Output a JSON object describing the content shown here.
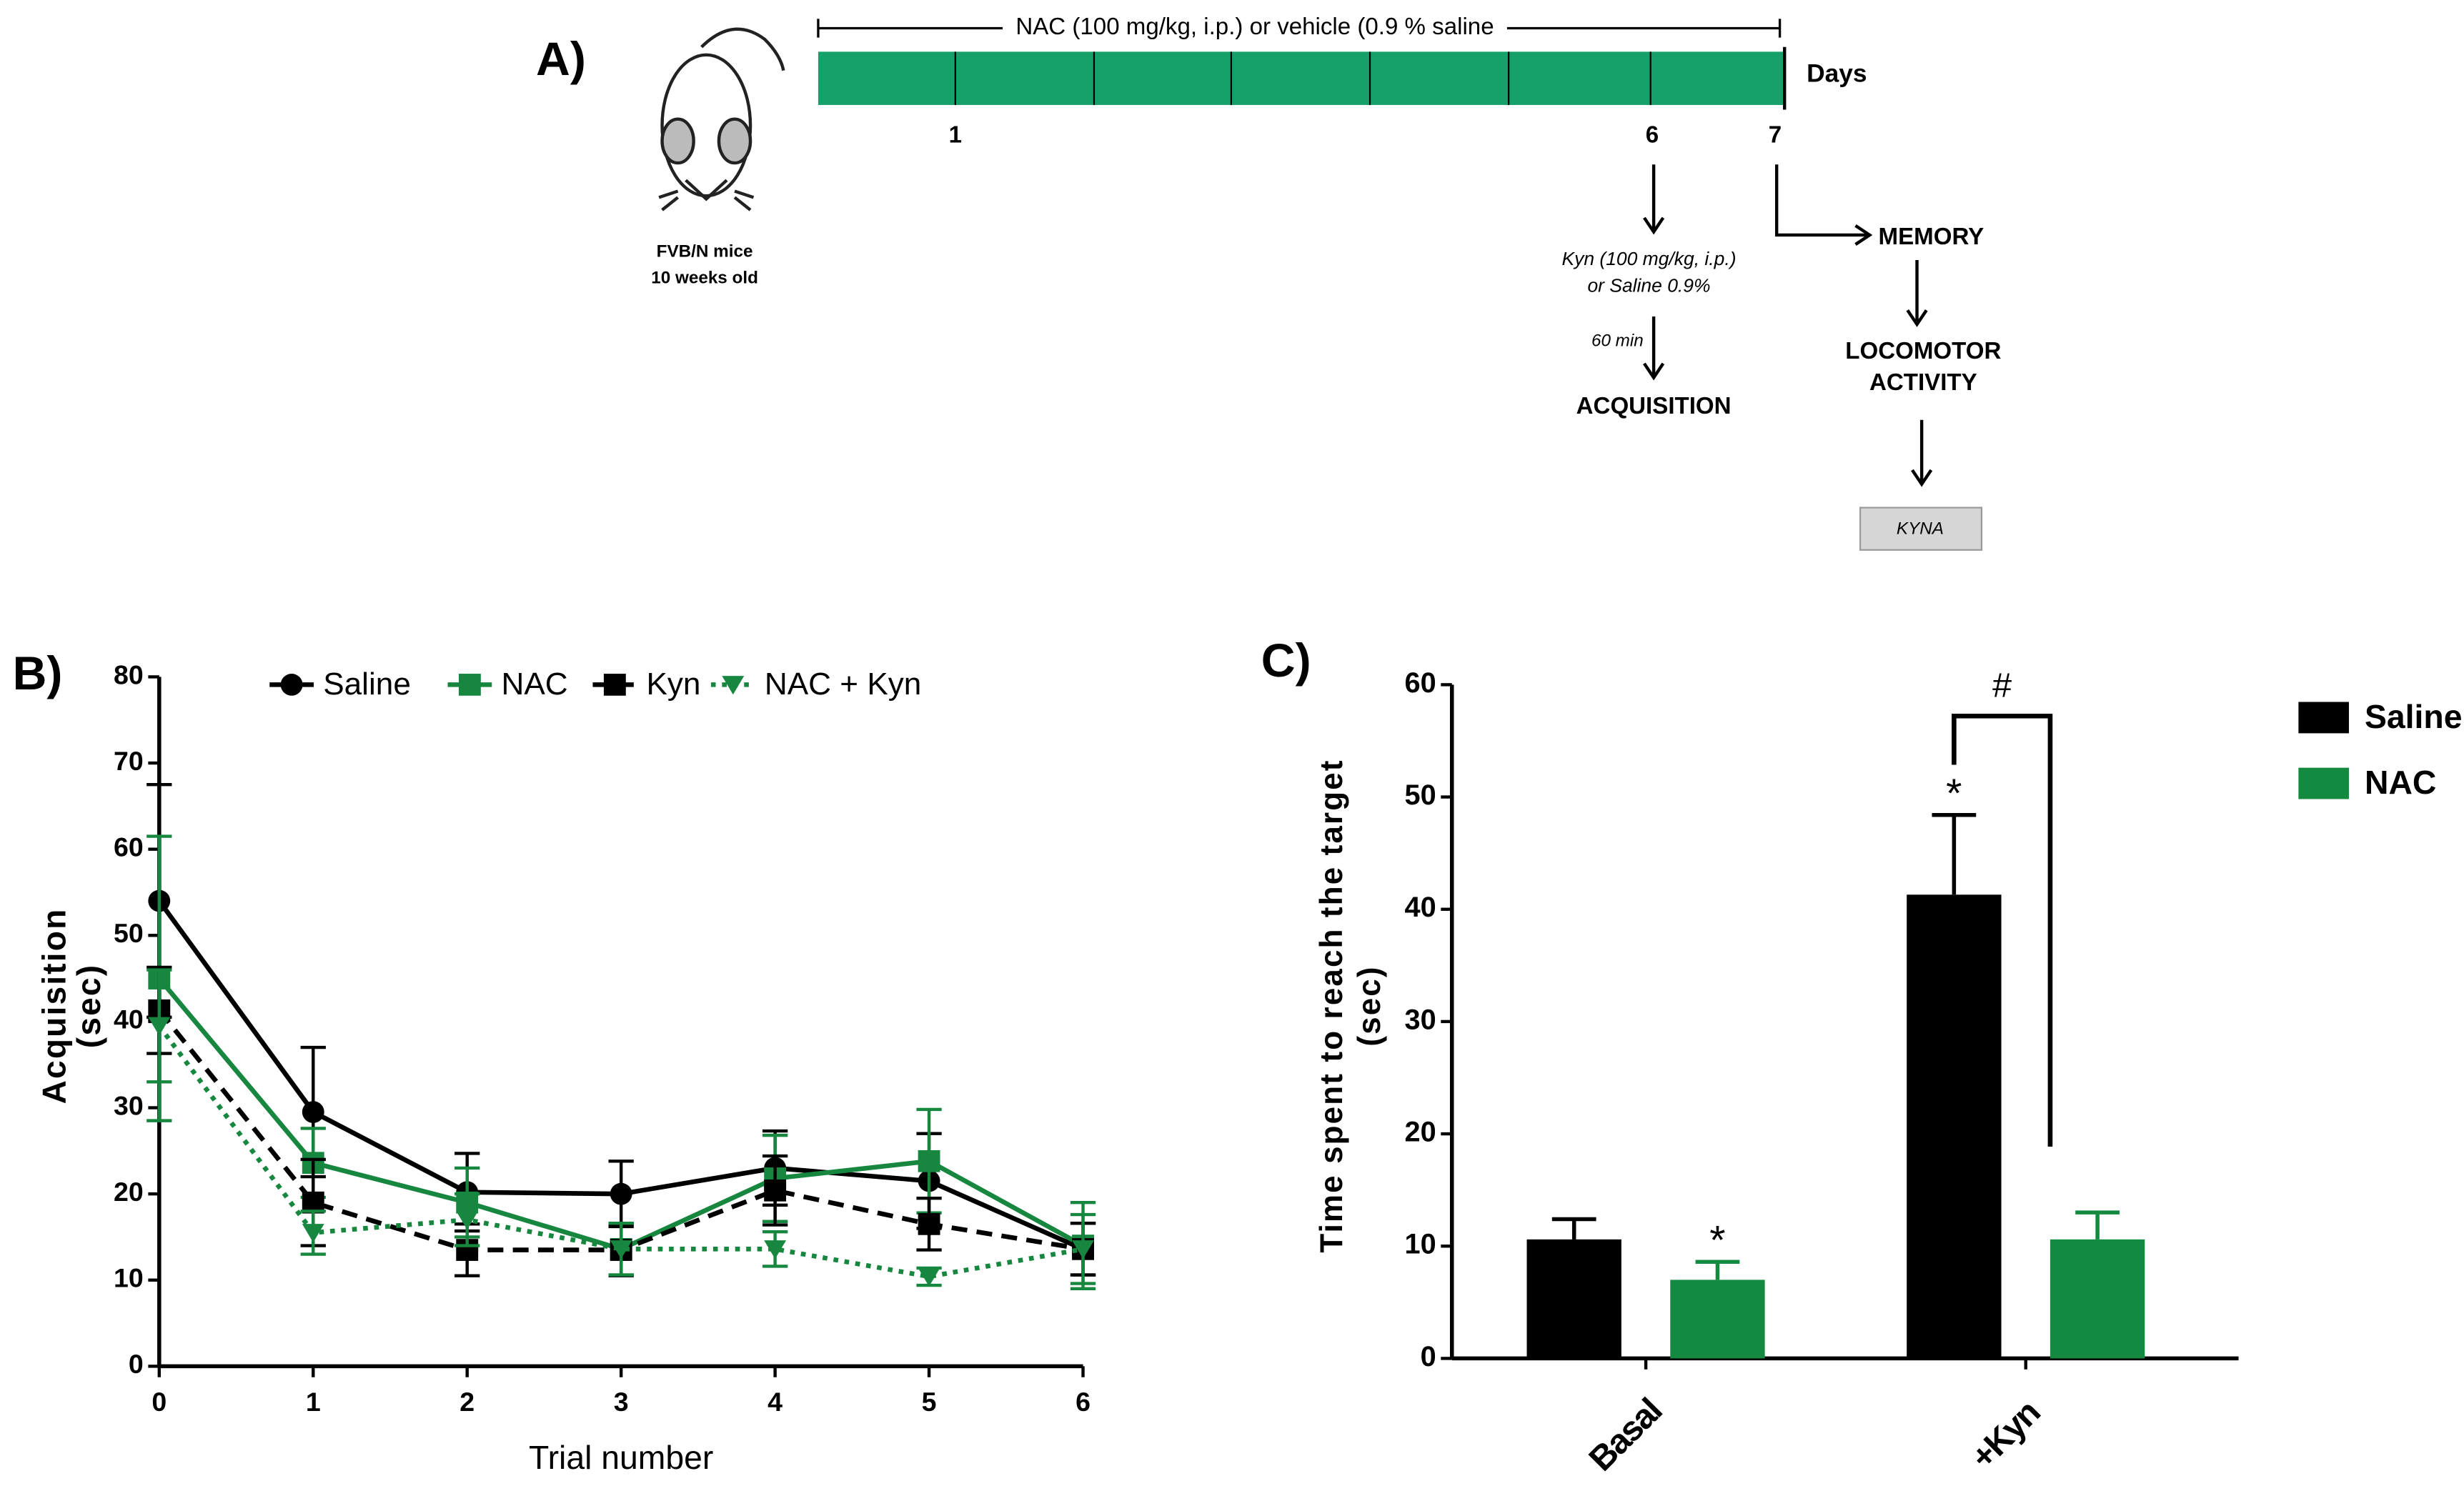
{
  "diagram": {
    "panel_label": "A)",
    "treatment": "NAC (100 mg/kg, i.p.) or vehicle (0.9 % saline",
    "days_label": "Days",
    "days": [
      "1",
      "6",
      "7"
    ],
    "mice": [
      "FVB/N mice",
      "10 weeks old"
    ],
    "kyn_injection": [
      "Kyn (100 mg/kg, i.p.)",
      "or Saline 0.9%"
    ],
    "delay": "60 min",
    "acquisition": "ACQUISITION",
    "memory": "MEMORY",
    "locomotor": [
      "LOCOMOTOR",
      "ACTIVITY"
    ],
    "kyna": "KYNA"
  },
  "chart_data": [
    {
      "type": "line",
      "panel_label": "B)",
      "x_label": "Trial number",
      "y_label": [
        "Acquisition",
        "(sec)"
      ],
      "x": [
        0,
        1,
        2,
        3,
        4,
        5,
        6
      ],
      "xlim": [
        0,
        6
      ],
      "xticks": [
        0,
        1,
        2,
        3,
        4,
        5,
        6
      ],
      "ylim": [
        0,
        80
      ],
      "yticks": [
        0,
        10,
        20,
        30,
        40,
        50,
        60,
        70,
        80
      ],
      "series": [
        {
          "name": "Saline",
          "color": "#000000",
          "marker": "circle",
          "dash": "solid",
          "values": [
            54,
            29.5,
            20.2,
            20,
            23,
            21.5,
            13.6
          ],
          "errors": [
            13.5,
            7.5,
            4.5,
            3.8,
            4.3,
            5.5,
            3
          ]
        },
        {
          "name": "NAC",
          "color": "#17873f",
          "marker": "square",
          "dash": "solid",
          "values": [
            45,
            23.6,
            19,
            13.6,
            21.8,
            23.8,
            14
          ],
          "errors": [
            16.5,
            4,
            4,
            3,
            5,
            6,
            5
          ]
        },
        {
          "name": "Kyn",
          "color": "#000000",
          "marker": "square",
          "dash": "dashed",
          "values": [
            41.3,
            19,
            13.5,
            13.5,
            20.4,
            16.5,
            13.6
          ],
          "errors": [
            5,
            5,
            3,
            3,
            4,
            3,
            3
          ]
        },
        {
          "name": "NAC + Kyn",
          "color": "#17873f",
          "marker": "triangle-down",
          "dash": "dotted",
          "values": [
            39.5,
            15.5,
            17,
            13.6,
            13.6,
            10.4,
            13.6
          ],
          "errors": [
            6.5,
            2.5,
            3,
            3,
            2,
            1,
            4
          ]
        }
      ]
    },
    {
      "type": "bar",
      "panel_label": "C)",
      "y_label": [
        "Time spent to reach the target",
        "(sec)"
      ],
      "categories": [
        "Basal",
        "+Kyn"
      ],
      "ylim": [
        0,
        60
      ],
      "yticks": [
        0,
        10,
        20,
        30,
        40,
        50,
        60
      ],
      "series": [
        {
          "name": "Saline",
          "color": "#000000",
          "values": [
            10.6,
            41.3
          ],
          "errors": [
            1.8,
            7.1
          ]
        },
        {
          "name": "NAC",
          "color": "#148a40",
          "values": [
            7,
            10.6
          ],
          "errors": [
            1.6,
            2.4
          ]
        }
      ],
      "annotations": [
        "*",
        "*",
        "#"
      ]
    }
  ]
}
